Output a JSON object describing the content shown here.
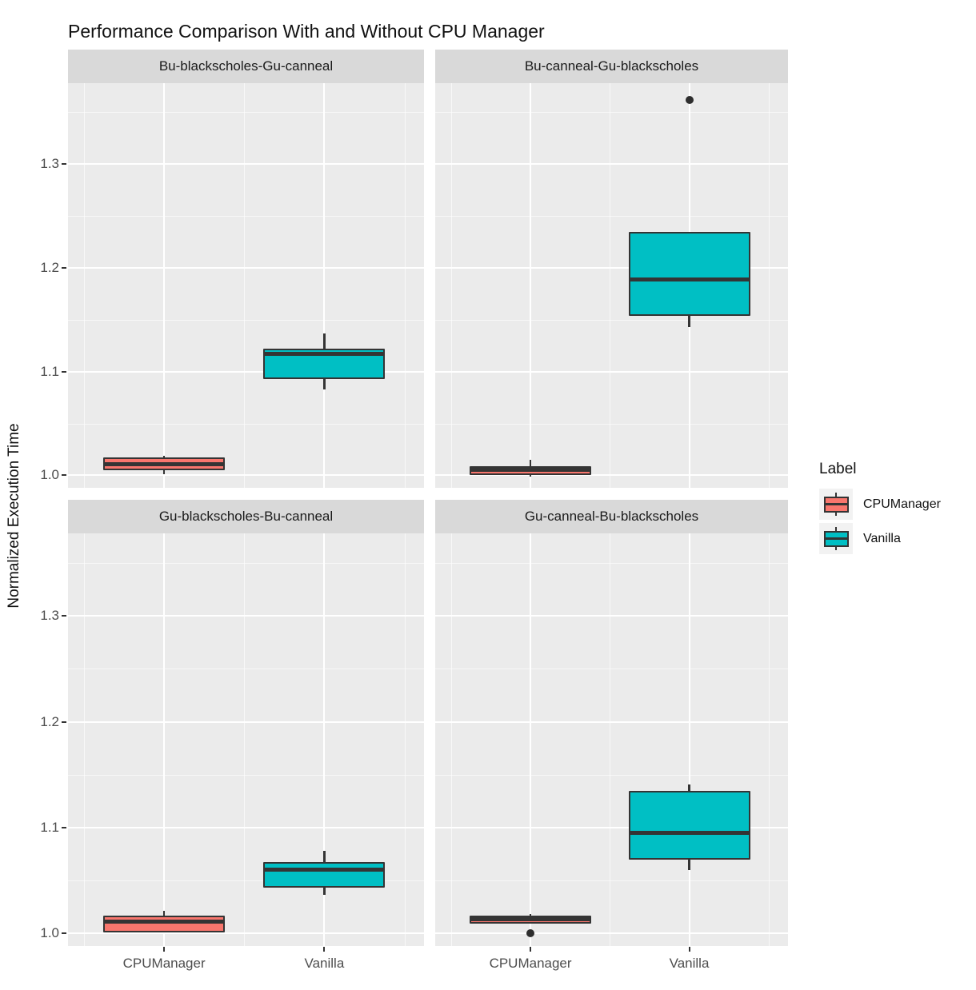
{
  "chart_data": {
    "type": "boxplot",
    "title": "Performance Comparison With and Without CPU Manager",
    "ylabel": "Normalized Execution Time",
    "xlabel": "",
    "categories": [
      "CPUManager",
      "Vanilla"
    ],
    "ylim": [
      0.988,
      1.378
    ],
    "y_ticks": [
      {
        "label": "1.0",
        "value": 1.0
      },
      {
        "label": "1.1",
        "value": 1.1
      },
      {
        "label": "1.2",
        "value": 1.2
      },
      {
        "label": "1.3",
        "value": 1.3
      }
    ],
    "y_minor_ticks": [
      1.05,
      1.15,
      1.25,
      1.35
    ],
    "grid": true,
    "facet_layout": "2x2",
    "legend": {
      "title": "Label",
      "position": "right",
      "entries": [
        {
          "label": "CPUManager",
          "color": "#F8766D"
        },
        {
          "label": "Vanilla",
          "color": "#00BFC4"
        }
      ]
    },
    "colors": {
      "cpumanager_fill": "#F8766D",
      "vanilla_fill": "#00BFC4",
      "box_outline": "#343434",
      "panel_background": "#EBEBEB",
      "strip_background": "#D9D9D9",
      "gridline": "#FFFFFF",
      "tick_text": "#4D4D4D",
      "outlier": "#2E2E2E"
    },
    "facets": [
      {
        "label": "Bu-blackscholes-Gu-canneal",
        "boxes": [
          {
            "group": "CPUManager",
            "min": 1.001,
            "q1": 1.005,
            "median": 1.011,
            "q3": 1.017,
            "max": 1.019,
            "outliers": []
          },
          {
            "group": "Vanilla",
            "min": 1.083,
            "q1": 1.093,
            "median": 1.117,
            "q3": 1.122,
            "max": 1.137,
            "outliers": []
          }
        ]
      },
      {
        "label": "Bu-canneal-Gu-blackscholes",
        "boxes": [
          {
            "group": "CPUManager",
            "min": 0.999,
            "q1": 1.0,
            "median": 1.005,
            "q3": 1.009,
            "max": 1.015,
            "outliers": []
          },
          {
            "group": "Vanilla",
            "min": 1.143,
            "q1": 1.154,
            "median": 1.189,
            "q3": 1.235,
            "max": 1.235,
            "outliers": [
              1.362
            ]
          }
        ]
      },
      {
        "label": "Gu-blackscholes-Bu-canneal",
        "boxes": [
          {
            "group": "CPUManager",
            "min": 1.001,
            "q1": 1.001,
            "median": 1.011,
            "q3": 1.017,
            "max": 1.021,
            "outliers": []
          },
          {
            "group": "Vanilla",
            "min": 1.036,
            "q1": 1.043,
            "median": 1.06,
            "q3": 1.067,
            "max": 1.078,
            "outliers": []
          }
        ]
      },
      {
        "label": "Gu-canneal-Bu-blackscholes",
        "boxes": [
          {
            "group": "CPUManager",
            "min": 1.009,
            "q1": 1.009,
            "median": 1.013,
            "q3": 1.017,
            "max": 1.018,
            "outliers": [
              1.0
            ]
          },
          {
            "group": "Vanilla",
            "min": 1.06,
            "q1": 1.07,
            "median": 1.095,
            "q3": 1.135,
            "max": 1.141,
            "outliers": []
          }
        ]
      }
    ]
  }
}
